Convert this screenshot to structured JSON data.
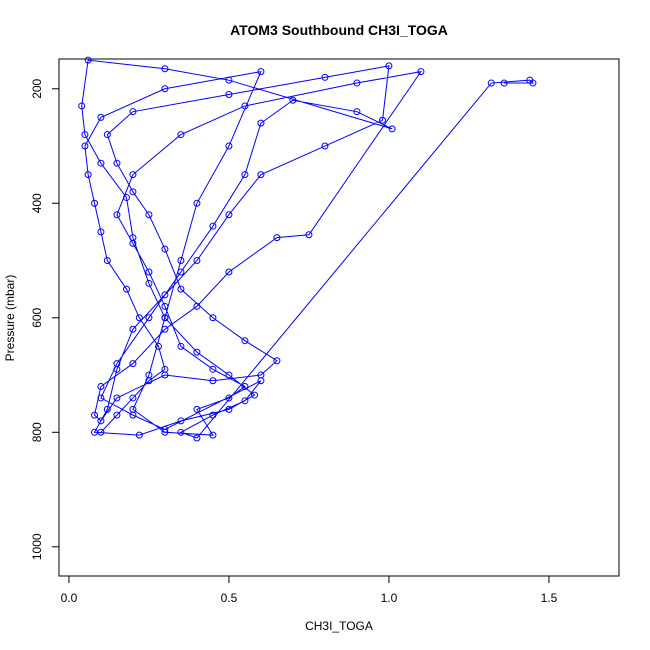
{
  "chart_data": {
    "type": "line",
    "title": "ATOM3 Southbound CH3I_TOGA",
    "x_label": "CH3I_TOGA",
    "y_label": "Pressure (mbar)",
    "xlim": [
      -0.031,
      1.719
    ],
    "ylim": [
      1051,
      148
    ],
    "xticks": [
      {
        "value": 0,
        "label": "0.0"
      },
      {
        "value": 0.5,
        "label": "0.5"
      },
      {
        "value": 1,
        "label": "1.0"
      },
      {
        "value": 1.5,
        "label": "1.5"
      }
    ],
    "yticks": [
      200,
      400,
      600,
      800,
      1000
    ],
    "grid": false,
    "series": [
      {
        "color": "#0000ff",
        "x": [
          0.1,
          0.15,
          0.2,
          0.25,
          0.3,
          0.28,
          0.22,
          0.18,
          0.12,
          0.1,
          0.08,
          0.06,
          0.05,
          0.1,
          0.3,
          0.6,
          0.5,
          0.4,
          0.35,
          0.3,
          0.25,
          0.2,
          0.3,
          0.45,
          0.4,
          0.5,
          0.55,
          0.45,
          0.35,
          0.3,
          0.25,
          0.2,
          0.15,
          0.2,
          0.35,
          0.55,
          0.9,
          1.1,
          0.75,
          0.65,
          0.5,
          0.4,
          0.3,
          0.2,
          0.1,
          0.08,
          0.1,
          0.15,
          0.3,
          0.45,
          0.6,
          0.65,
          0.55,
          0.45,
          0.35,
          0.3,
          0.25,
          0.2,
          0.15,
          0.12,
          0.2,
          0.5,
          0.8,
          1.0,
          0.98,
          0.8,
          0.6,
          0.5,
          0.4,
          0.3,
          0.2,
          0.15,
          0.12,
          0.08,
          0.22,
          0.35,
          0.5,
          0.58,
          0.5,
          0.4,
          0.3,
          0.25,
          0.2,
          0.18,
          0.1,
          0.05,
          0.04,
          0.06,
          0.3,
          0.5,
          1.01,
          0.9,
          0.7,
          0.6,
          0.55,
          0.45,
          0.35,
          0.25,
          0.15,
          0.1,
          0.2,
          0.3,
          0.6,
          0.55,
          0.45,
          0.35,
          0.4,
          1.32,
          1.44,
          1.45,
          1.36
        ],
        "values": [
          800,
          770,
          740,
          710,
          690,
          650,
          600,
          550,
          500,
          450,
          400,
          350,
          300,
          250,
          200,
          170,
          300,
          400,
          500,
          600,
          700,
          760,
          800,
          805,
          760,
          740,
          720,
          690,
          650,
          580,
          520,
          470,
          420,
          350,
          280,
          230,
          190,
          170,
          455,
          460,
          520,
          580,
          620,
          680,
          720,
          770,
          780,
          740,
          700,
          710,
          700,
          675,
          640,
          600,
          550,
          480,
          420,
          380,
          330,
          280,
          240,
          210,
          180,
          160,
          255,
          300,
          350,
          420,
          500,
          560,
          620,
          690,
          760,
          800,
          805,
          780,
          760,
          735,
          700,
          660,
          600,
          540,
          460,
          390,
          330,
          280,
          230,
          150,
          165,
          185,
          270,
          240,
          220,
          260,
          350,
          440,
          520,
          600,
          680,
          740,
          770,
          795,
          710,
          745,
          770,
          800,
          810,
          190,
          185,
          190,
          190
        ]
      }
    ]
  }
}
